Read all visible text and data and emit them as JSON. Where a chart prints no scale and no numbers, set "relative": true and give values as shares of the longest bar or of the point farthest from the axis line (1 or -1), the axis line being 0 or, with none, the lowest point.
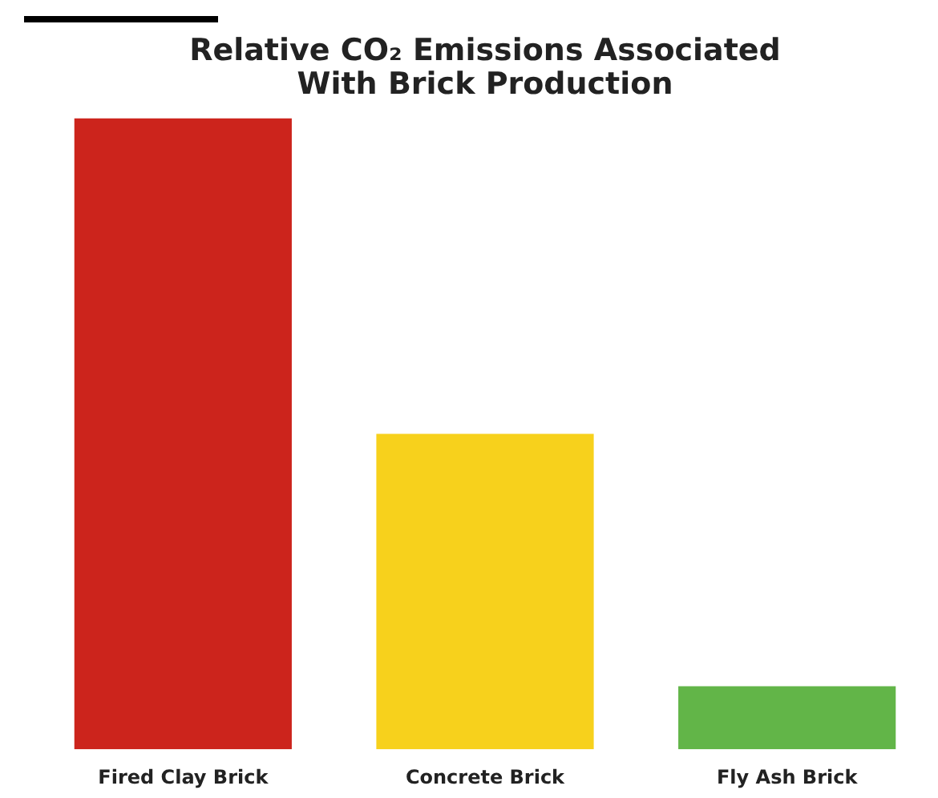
{
  "chart_data": {
    "type": "bar",
    "title": "Relative CO₂ Emissions Associated\nWith Brick Production",
    "categories": [
      "Fired Clay Brick",
      "Concrete Brick",
      "Fly Ash Brick"
    ],
    "values": [
      1,
      0.5,
      0.1
    ],
    "colors": [
      "#cc241c",
      "#f7d11c",
      "#62b548"
    ],
    "relative": true,
    "grid": false,
    "legend": false
  }
}
